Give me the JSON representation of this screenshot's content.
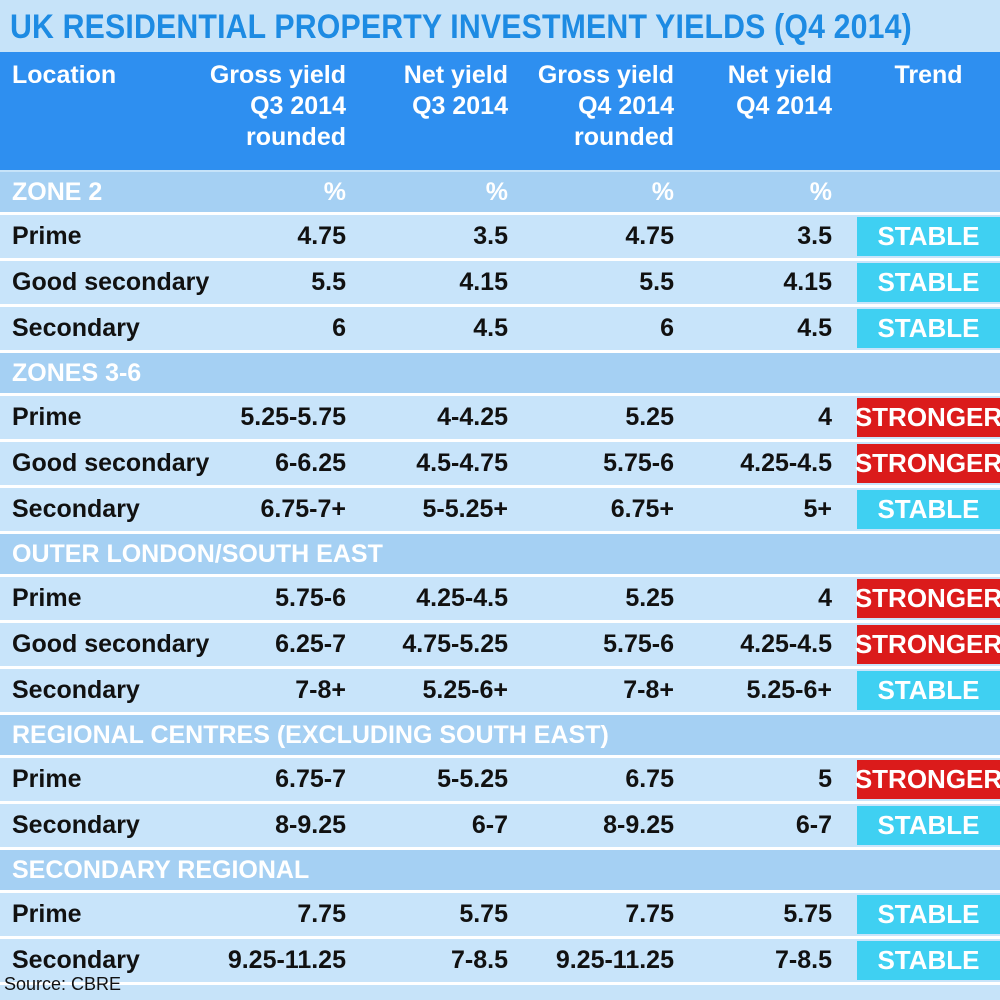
{
  "title": "UK RESIDENTIAL PROPERTY INVESTMENT YIELDS (Q4 2014)",
  "colors": {
    "header": "#2e8ff0",
    "stable": "#3fd0f2",
    "stronger": "#db1b1b",
    "row": "#c8e4fa",
    "section": "#a5d0f3"
  },
  "chart_data": {
    "type": "table",
    "title": "UK RESIDENTIAL PROPERTY INVESTMENT YIELDS (Q4 2014)",
    "columns": [
      {
        "lines": [
          "Location"
        ]
      },
      {
        "lines": [
          "Gross yield",
          "Q3 2014",
          "rounded"
        ]
      },
      {
        "lines": [
          "Net yield",
          "Q3 2014"
        ]
      },
      {
        "lines": [
          "Gross yield",
          "Q4 2014",
          "rounded"
        ]
      },
      {
        "lines": [
          "Net yield",
          "Q4 2014"
        ]
      },
      {
        "lines": [
          "Trend"
        ]
      }
    ],
    "sections": [
      {
        "name": "ZONE 2",
        "units": [
          "%",
          "%",
          "%",
          "%"
        ],
        "rows": [
          {
            "location": "Prime",
            "values": [
              "4.75",
              "3.5",
              "4.75",
              "3.5"
            ],
            "trend": "STABLE"
          },
          {
            "location": "Good secondary",
            "values": [
              "5.5",
              "4.15",
              "5.5",
              "4.15"
            ],
            "trend": "STABLE"
          },
          {
            "location": "Secondary",
            "values": [
              "6",
              "4.5",
              "6",
              "4.5"
            ],
            "trend": "STABLE"
          }
        ]
      },
      {
        "name": "ZONES 3-6",
        "units": [
          "",
          "",
          "",
          ""
        ],
        "rows": [
          {
            "location": "Prime",
            "values": [
              "5.25-5.75",
              "4-4.25",
              "5.25",
              "4"
            ],
            "trend": "STRONGER"
          },
          {
            "location": "Good secondary",
            "values": [
              "6-6.25",
              "4.5-4.75",
              "5.75-6",
              "4.25-4.5"
            ],
            "trend": "STRONGER"
          },
          {
            "location": "Secondary",
            "values": [
              "6.75-7+",
              "5-5.25+",
              "6.75+",
              "5+"
            ],
            "trend": "STABLE"
          }
        ]
      },
      {
        "name": "OUTER LONDON/SOUTH EAST",
        "units": [
          "",
          "",
          "",
          ""
        ],
        "rows": [
          {
            "location": "Prime",
            "values": [
              "5.75-6",
              "4.25-4.5",
              "5.25",
              "4"
            ],
            "trend": "STRONGER"
          },
          {
            "location": "Good secondary",
            "values": [
              "6.25-7",
              "4.75-5.25",
              "5.75-6",
              "4.25-4.5"
            ],
            "trend": "STRONGER"
          },
          {
            "location": "Secondary",
            "values": [
              "7-8+",
              "5.25-6+",
              "7-8+",
              "5.25-6+"
            ],
            "trend": "STABLE"
          }
        ]
      },
      {
        "name": "REGIONAL CENTRES (EXCLUDING SOUTH EAST)",
        "units": [
          "",
          "",
          "",
          ""
        ],
        "rows": [
          {
            "location": "Prime",
            "values": [
              "6.75-7",
              "5-5.25",
              "6.75",
              "5"
            ],
            "trend": "STRONGER"
          },
          {
            "location": "Secondary",
            "values": [
              "8-9.25",
              "6-7",
              "8-9.25",
              "6-7"
            ],
            "trend": "STABLE"
          }
        ]
      },
      {
        "name": "SECONDARY REGIONAL",
        "units": [
          "",
          "",
          "",
          ""
        ],
        "rows": [
          {
            "location": "Prime",
            "values": [
              "7.75",
              "5.75",
              "7.75",
              "5.75"
            ],
            "trend": "STABLE"
          },
          {
            "location": "Secondary",
            "values": [
              "9.25-11.25",
              "7-8.5",
              "9.25-11.25",
              "7-8.5"
            ],
            "trend": "STABLE"
          }
        ]
      }
    ],
    "source": "Source: CBRE"
  }
}
